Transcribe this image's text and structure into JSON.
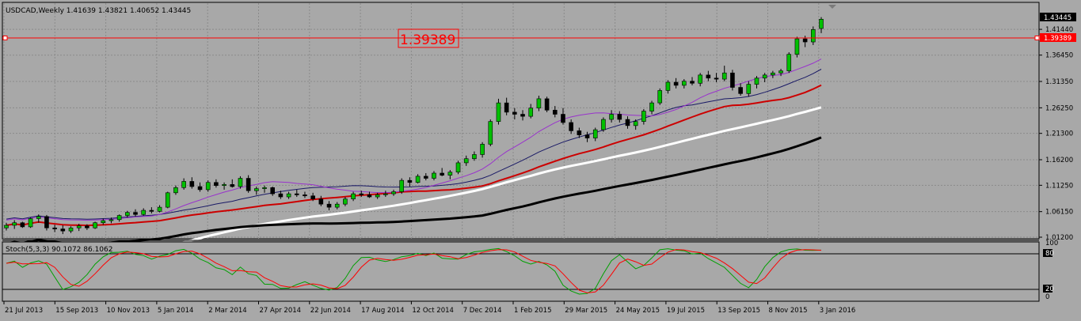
{
  "header": {
    "symbol_info": "USDCAD,Weekly  1.41639 1.43821 1.40652 1.43445"
  },
  "price_line": {
    "value": "1.39389",
    "axis_label": "1.39389",
    "color": "#ff0000"
  },
  "current_price_label": "1.43445",
  "price_axis": {
    "labels": [
      "1.41440",
      "1.36450",
      "1.31350",
      "1.26250",
      "1.21300",
      "1.16200",
      "1.11250",
      "1.06150",
      "1.01200"
    ]
  },
  "date_axis": {
    "labels": [
      "21 Jul 2013",
      "15 Sep 2013",
      "10 Nov 2013",
      "5 Jan 2014",
      "2 Mar 2014",
      "27 Apr 2014",
      "22 Jun 2014",
      "17 Aug 2014",
      "12 Oct 2014",
      "7 Dec 2014",
      "1 Feb 2015",
      "29 Mar 2015",
      "24 May 2015",
      "19 Jul 2015",
      "13 Sep 2015",
      "8 Nov 2015",
      "3 Jan 2016"
    ]
  },
  "indicator": {
    "label": "Stoch(5,3,3) 90.1072 86.1062",
    "levels": [
      "100",
      "80",
      "20",
      "0"
    ],
    "main_color": "#00a000",
    "signal_color": "#ff0000"
  },
  "colors": {
    "bull_candle": "#00c000",
    "bear_candle": "#000000",
    "ma_purple": "#9933cc",
    "ma_navy": "#1a1a66",
    "ma_red": "#cc0000",
    "ma_black": "#000000",
    "ma_white": "#ffffff"
  },
  "chart_data": {
    "type": "candlestick",
    "symbol": "USDCAD",
    "timeframe": "Weekly",
    "ohlc_last": {
      "open": 1.41639,
      "high": 1.43821,
      "low": 1.40652,
      "close": 1.43445
    },
    "ylim": [
      1.0,
      1.445
    ],
    "candles": [
      [
        1.03,
        1.04,
        1.025,
        1.035
      ],
      [
        1.035,
        1.045,
        1.028,
        1.04
      ],
      [
        1.04,
        1.042,
        1.03,
        1.032
      ],
      [
        1.032,
        1.05,
        1.03,
        1.048
      ],
      [
        1.048,
        1.056,
        1.04,
        1.052
      ],
      [
        1.052,
        1.055,
        1.025,
        1.03
      ],
      [
        1.03,
        1.036,
        1.022,
        1.028
      ],
      [
        1.028,
        1.035,
        1.018,
        1.024
      ],
      [
        1.024,
        1.033,
        1.02,
        1.03
      ],
      [
        1.03,
        1.038,
        1.024,
        1.034
      ],
      [
        1.034,
        1.037,
        1.026,
        1.03
      ],
      [
        1.03,
        1.042,
        1.028,
        1.04
      ],
      [
        1.04,
        1.048,
        1.036,
        1.044
      ],
      [
        1.044,
        1.05,
        1.039,
        1.046
      ],
      [
        1.046,
        1.056,
        1.042,
        1.054
      ],
      [
        1.054,
        1.063,
        1.05,
        1.06
      ],
      [
        1.06,
        1.066,
        1.052,
        1.056
      ],
      [
        1.056,
        1.068,
        1.054,
        1.064
      ],
      [
        1.064,
        1.07,
        1.058,
        1.062
      ],
      [
        1.062,
        1.074,
        1.06,
        1.07
      ],
      [
        1.07,
        1.1,
        1.068,
        1.098
      ],
      [
        1.098,
        1.112,
        1.094,
        1.108
      ],
      [
        1.108,
        1.126,
        1.104,
        1.12
      ],
      [
        1.12,
        1.128,
        1.106,
        1.11
      ],
      [
        1.11,
        1.118,
        1.1,
        1.104
      ],
      [
        1.104,
        1.122,
        1.1,
        1.118
      ],
      [
        1.118,
        1.124,
        1.108,
        1.112
      ],
      [
        1.112,
        1.118,
        1.104,
        1.114
      ],
      [
        1.114,
        1.124,
        1.108,
        1.11
      ],
      [
        1.11,
        1.13,
        1.106,
        1.126
      ],
      [
        1.126,
        1.132,
        1.098,
        1.102
      ],
      [
        1.102,
        1.11,
        1.094,
        1.106
      ],
      [
        1.106,
        1.112,
        1.098,
        1.108
      ],
      [
        1.108,
        1.11,
        1.092,
        1.096
      ],
      [
        1.096,
        1.102,
        1.086,
        1.09
      ],
      [
        1.09,
        1.1,
        1.086,
        1.096
      ],
      [
        1.096,
        1.104,
        1.09,
        1.094
      ],
      [
        1.094,
        1.1,
        1.088,
        1.092
      ],
      [
        1.092,
        1.098,
        1.082,
        1.086
      ],
      [
        1.086,
        1.092,
        1.072,
        1.076
      ],
      [
        1.076,
        1.082,
        1.064,
        1.07
      ],
      [
        1.07,
        1.08,
        1.066,
        1.076
      ],
      [
        1.076,
        1.09,
        1.072,
        1.086
      ],
      [
        1.086,
        1.1,
        1.082,
        1.096
      ],
      [
        1.096,
        1.102,
        1.09,
        1.094
      ],
      [
        1.094,
        1.1,
        1.088,
        1.09
      ],
      [
        1.09,
        1.098,
        1.086,
        1.094
      ],
      [
        1.094,
        1.102,
        1.09,
        1.096
      ],
      [
        1.096,
        1.104,
        1.092,
        1.1
      ],
      [
        1.1,
        1.126,
        1.096,
        1.122
      ],
      [
        1.122,
        1.128,
        1.11,
        1.118
      ],
      [
        1.118,
        1.134,
        1.116,
        1.13
      ],
      [
        1.13,
        1.136,
        1.122,
        1.126
      ],
      [
        1.126,
        1.14,
        1.122,
        1.136
      ],
      [
        1.136,
        1.146,
        1.13,
        1.132
      ],
      [
        1.132,
        1.142,
        1.124,
        1.138
      ],
      [
        1.138,
        1.16,
        1.134,
        1.156
      ],
      [
        1.156,
        1.17,
        1.15,
        1.164
      ],
      [
        1.164,
        1.178,
        1.16,
        1.172
      ],
      [
        1.172,
        1.196,
        1.166,
        1.192
      ],
      [
        1.192,
        1.24,
        1.188,
        1.236
      ],
      [
        1.236,
        1.28,
        1.23,
        1.272
      ],
      [
        1.272,
        1.282,
        1.248,
        1.254
      ],
      [
        1.254,
        1.262,
        1.24,
        1.25
      ],
      [
        1.25,
        1.258,
        1.238,
        1.246
      ],
      [
        1.246,
        1.27,
        1.242,
        1.262
      ],
      [
        1.262,
        1.286,
        1.256,
        1.28
      ],
      [
        1.28,
        1.284,
        1.254,
        1.258
      ],
      [
        1.258,
        1.266,
        1.244,
        1.25
      ],
      [
        1.25,
        1.262,
        1.23,
        1.234
      ],
      [
        1.234,
        1.24,
        1.212,
        1.218
      ],
      [
        1.218,
        1.224,
        1.204,
        1.21
      ],
      [
        1.21,
        1.216,
        1.196,
        1.204
      ],
      [
        1.204,
        1.224,
        1.198,
        1.22
      ],
      [
        1.22,
        1.244,
        1.216,
        1.24
      ],
      [
        1.24,
        1.258,
        1.234,
        1.25
      ],
      [
        1.25,
        1.256,
        1.234,
        1.24
      ],
      [
        1.24,
        1.246,
        1.222,
        1.228
      ],
      [
        1.228,
        1.24,
        1.22,
        1.236
      ],
      [
        1.236,
        1.26,
        1.23,
        1.256
      ],
      [
        1.256,
        1.276,
        1.25,
        1.272
      ],
      [
        1.272,
        1.3,
        1.268,
        1.296
      ],
      [
        1.296,
        1.316,
        1.29,
        1.312
      ],
      [
        1.312,
        1.32,
        1.3,
        1.306
      ],
      [
        1.306,
        1.318,
        1.3,
        1.314
      ],
      [
        1.314,
        1.322,
        1.306,
        1.31
      ],
      [
        1.31,
        1.33,
        1.304,
        1.326
      ],
      [
        1.326,
        1.334,
        1.314,
        1.32
      ],
      [
        1.32,
        1.33,
        1.312,
        1.318
      ],
      [
        1.318,
        1.344,
        1.314,
        1.33
      ],
      [
        1.33,
        1.336,
        1.296,
        1.302
      ],
      [
        1.302,
        1.31,
        1.286,
        1.29
      ],
      [
        1.29,
        1.314,
        1.284,
        1.308
      ],
      [
        1.308,
        1.324,
        1.3,
        1.32
      ],
      [
        1.32,
        1.33,
        1.312,
        1.326
      ],
      [
        1.326,
        1.334,
        1.32,
        1.33
      ],
      [
        1.33,
        1.338,
        1.324,
        1.334
      ],
      [
        1.334,
        1.37,
        1.33,
        1.366
      ],
      [
        1.366,
        1.4,
        1.36,
        1.396
      ],
      [
        1.396,
        1.402,
        1.38,
        1.39
      ],
      [
        1.39,
        1.42,
        1.384,
        1.414
      ],
      [
        1.416,
        1.438,
        1.407,
        1.434
      ]
    ]
  }
}
